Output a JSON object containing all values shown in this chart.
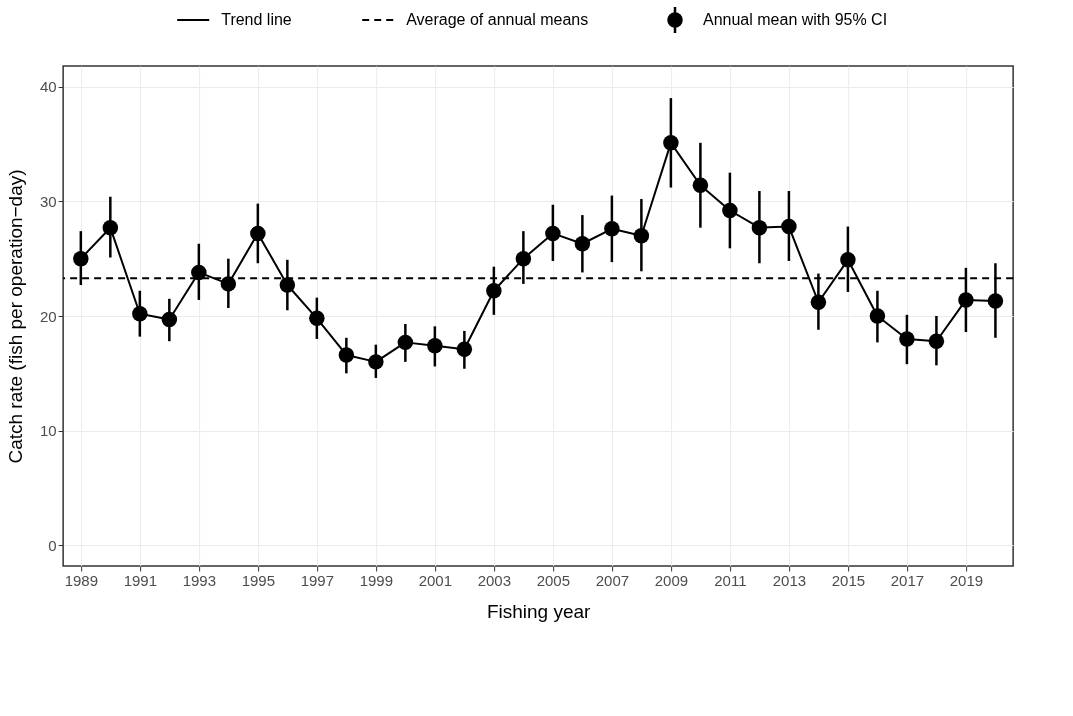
{
  "chart_data": {
    "type": "line",
    "xlabel": "Fishing year",
    "ylabel": "Catch rate (fish per operation−day)",
    "x": [
      1989,
      1990,
      1991,
      1992,
      1993,
      1994,
      1995,
      1996,
      1997,
      1998,
      1999,
      2000,
      2001,
      2002,
      2003,
      2004,
      2005,
      2006,
      2007,
      2008,
      2009,
      2010,
      2011,
      2012,
      2013,
      2014,
      2015,
      2016,
      2017,
      2018,
      2019,
      2020
    ],
    "series": [
      {
        "name": "Trend line",
        "color": "#000000",
        "line_style": "solid",
        "values": [
          25.0,
          27.7,
          20.2,
          19.7,
          23.8,
          22.8,
          27.2,
          22.7,
          19.8,
          16.6,
          16.0,
          17.7,
          17.4,
          17.1,
          22.2,
          25.0,
          27.2,
          26.3,
          27.6,
          27.0,
          35.1,
          31.4,
          29.2,
          27.7,
          27.8,
          21.2,
          24.9,
          20.0,
          18.0,
          17.8,
          21.4,
          21.3
        ]
      },
      {
        "name": "Annual mean with 95% CI",
        "type": "scatter",
        "color": "#000000",
        "marker": "circle",
        "values": [
          25.0,
          27.7,
          20.2,
          19.7,
          23.8,
          22.8,
          27.2,
          22.7,
          19.8,
          16.6,
          16.0,
          17.7,
          17.4,
          17.1,
          22.2,
          25.0,
          27.2,
          26.3,
          27.6,
          27.0,
          35.1,
          31.4,
          29.2,
          27.7,
          27.8,
          21.2,
          24.9,
          20.0,
          18.0,
          17.8,
          21.4,
          21.3
        ],
        "errors": [
          [
            22.7,
            27.4
          ],
          [
            25.1,
            30.4
          ],
          [
            18.2,
            22.2
          ],
          [
            17.8,
            21.5
          ],
          [
            21.4,
            26.3
          ],
          [
            20.7,
            25.0
          ],
          [
            24.6,
            29.8
          ],
          [
            20.5,
            24.9
          ],
          [
            18.0,
            21.6
          ],
          [
            15.0,
            18.1
          ],
          [
            14.6,
            17.5
          ],
          [
            16.0,
            19.3
          ],
          [
            15.6,
            19.1
          ],
          [
            15.4,
            18.7
          ],
          [
            20.1,
            24.3
          ],
          [
            22.8,
            27.4
          ],
          [
            24.8,
            29.7
          ],
          [
            23.8,
            28.8
          ],
          [
            24.7,
            30.5
          ],
          [
            23.9,
            30.2
          ],
          [
            31.2,
            39.0
          ],
          [
            27.7,
            35.1
          ],
          [
            25.9,
            32.5
          ],
          [
            24.6,
            30.9
          ],
          [
            24.8,
            30.9
          ],
          [
            18.8,
            23.7
          ],
          [
            22.1,
            27.8
          ],
          [
            17.7,
            22.2
          ],
          [
            15.8,
            20.1
          ],
          [
            15.7,
            20.0
          ],
          [
            18.6,
            24.2
          ],
          [
            18.1,
            24.6
          ]
        ]
      }
    ],
    "ref_lines": [
      {
        "axis": "y",
        "value": 23.3,
        "label": "Average of annual means",
        "color": "#000000",
        "line_style": "dashed"
      }
    ],
    "xlim": [
      1988.4,
      2020.6
    ],
    "xticks": [
      1989,
      1991,
      1993,
      1995,
      1997,
      1999,
      2001,
      2003,
      2005,
      2007,
      2009,
      2011,
      2013,
      2015,
      2017,
      2019
    ],
    "ylim": [
      -1.8,
      41.8
    ],
    "yticks": [
      0,
      10,
      20,
      30,
      40
    ],
    "grid": true,
    "legend": "top"
  }
}
